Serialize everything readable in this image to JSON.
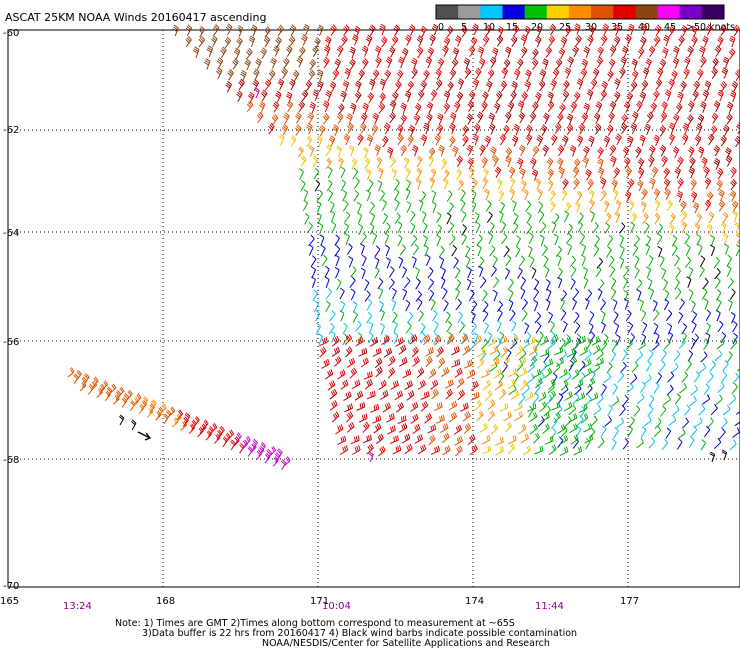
{
  "title": "ASCAT 25KM NOAA Winds 20160417 ascending",
  "colorbar": {
    "ticks": [
      "0",
      "5",
      "10",
      "15",
      "20",
      "25",
      "30",
      "35",
      "40",
      "45",
      ">50 knots"
    ],
    "colors": [
      "#505050",
      "#9a9a9a",
      "#00c8ff",
      "#0000e0",
      "#00c000",
      "#ffd000",
      "#ff8c00",
      "#e05000",
      "#e00000",
      "#8b4513",
      "#ff00ff",
      "#7a00c8",
      "#3a0060"
    ]
  },
  "lat_labels": [
    "-60",
    "-62",
    "-64",
    "-66",
    "-68",
    "-70"
  ],
  "lon_labels": [
    "165",
    "168",
    "171",
    "174",
    "177"
  ],
  "times": [
    "13:24",
    "10:04",
    "11:44"
  ],
  "time_color": "#8b008b",
  "notes": {
    "line1": "Note: 1) Times are GMT 2)Times along bottom correspond to measurement at ~65S",
    "line2": "3)Data buffer is 22 hrs from 20160417 4) Black wind barbs indicate possible contamination",
    "line3": "NOAA/NESDIS/Center for Satellite Applications and Research"
  },
  "map_data": {
    "projection": "lat-lon",
    "lon_range": [
      165,
      179.5
    ],
    "lat_range": [
      -70,
      -60
    ],
    "swaths": [
      {
        "name": "east-swath",
        "dominant_colors_north_to_south": [
          "#8b4513",
          "#e00000",
          "#e05000",
          "#ffd000",
          "#00c000",
          "#0000e0",
          "#00c8ff"
        ]
      },
      {
        "name": "south-swath",
        "dominant_colors_north_to_south": [
          "#e00000",
          "#e05000",
          "#ffd000",
          "#00c000"
        ]
      },
      {
        "name": "west-swath-tail",
        "dominant_colors": [
          "#e05000",
          "#ff8c00",
          "#e00000",
          "#ff00ff"
        ]
      }
    ]
  }
}
